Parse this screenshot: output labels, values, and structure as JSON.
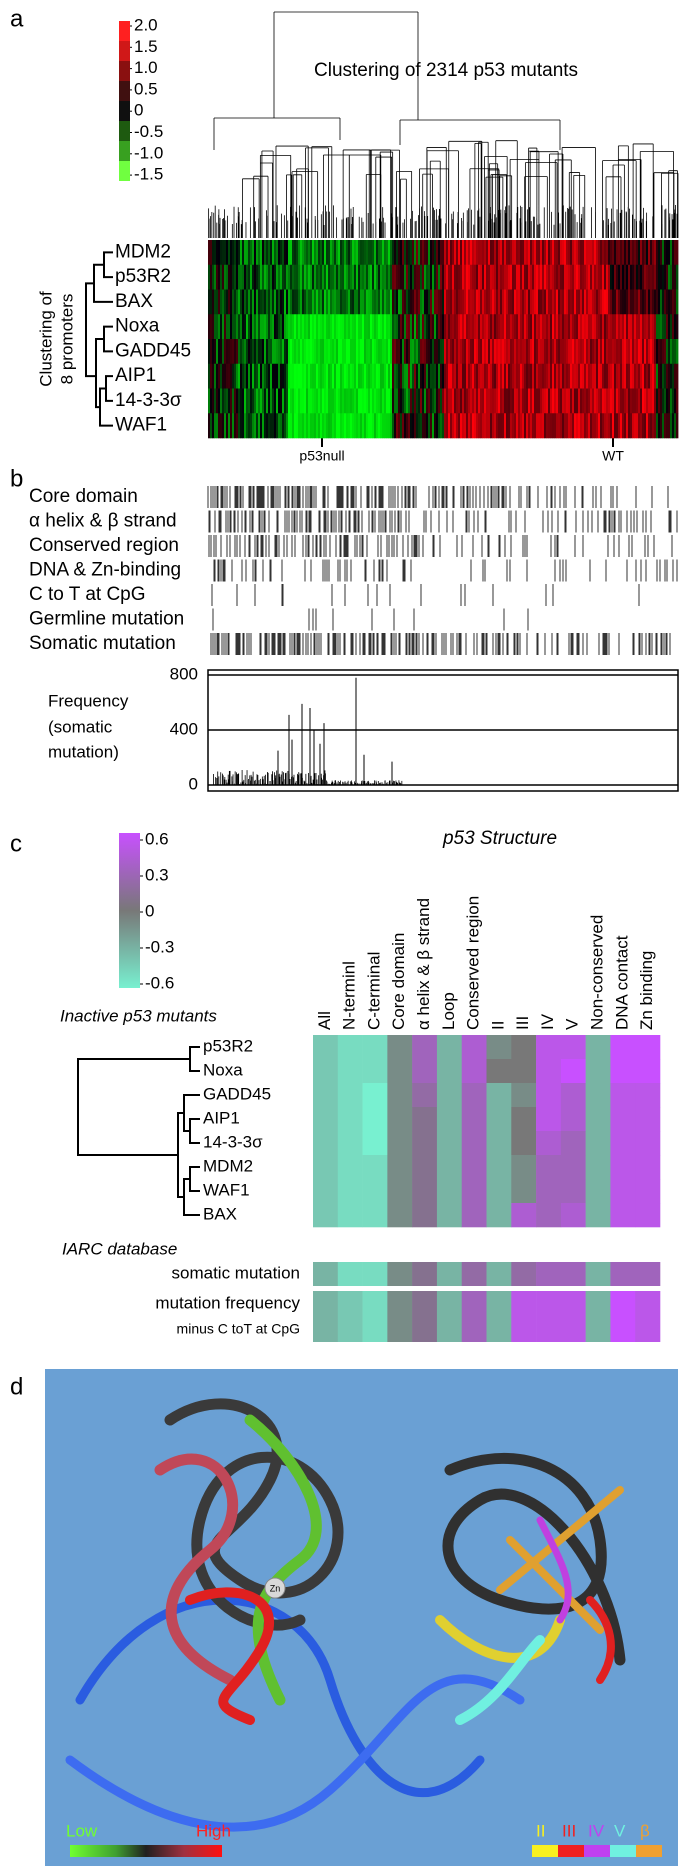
{
  "panel_a": {
    "label": "a",
    "title": "Clustering of 2314 p53 mutants",
    "scale": [
      {
        "value": 2.0,
        "label": "2.0"
      },
      1.5,
      {
        "value": 1.0,
        "label": "1.0"
      },
      0.5,
      0,
      -0.5,
      {
        "value": -1.0,
        "label": "-1.0"
      },
      -1.5
    ],
    "row_axis_label": [
      "Clustering of",
      "8 promoters"
    ],
    "rows": [
      "MDM2",
      "p53R2",
      "BAX",
      "Noxa",
      "GADD45",
      "AIP1",
      "14-3-3σ",
      "WAF1"
    ],
    "markers": [
      "p53null",
      "WT"
    ]
  },
  "panel_b": {
    "label": "b",
    "tracks": [
      "Core domain",
      "α helix & β strand",
      "Conserved region",
      "DNA & Zn-binding",
      "C to T at CpG",
      "Germline mutation",
      "Somatic mutation"
    ],
    "frequency": {
      "label": [
        "Frequency",
        "(somatic",
        "mutation)"
      ],
      "ylim": [
        0,
        800
      ],
      "yticks": [
        0,
        400,
        800
      ],
      "peaks": [
        250,
        510,
        330,
        590,
        560,
        400,
        300,
        450,
        780,
        220,
        170
      ]
    }
  },
  "panel_c": {
    "label": "c",
    "scale": [
      0.6,
      0.3,
      0,
      -0.3,
      -0.6
    ],
    "title": "p53 Structure",
    "columns": [
      "All",
      "N-terminl",
      "C-terminal",
      "Core domain",
      "α helix & β strand",
      "Loop",
      "Conserved region",
      "II",
      "III",
      "IV",
      "V",
      "Non-conserved",
      "DNA contact",
      "Zn binding"
    ],
    "group_label": "Inactive p53 mutants",
    "rows": [
      "p53R2",
      "Noxa",
      "GADD45",
      "AIP1",
      "14-3-3σ",
      "MDM2",
      "WAF1",
      "BAX"
    ],
    "values": [
      [
        -0.4,
        -0.5,
        -0.5,
        -0.1,
        0.3,
        -0.3,
        0.4,
        -0.1,
        0.0,
        0.5,
        0.5,
        -0.3,
        0.6,
        0.6
      ],
      [
        -0.4,
        -0.5,
        -0.5,
        -0.1,
        0.3,
        -0.3,
        0.4,
        0.0,
        0.0,
        0.5,
        0.6,
        -0.3,
        0.6,
        0.6
      ],
      [
        -0.4,
        -0.5,
        -0.6,
        -0.1,
        0.2,
        -0.3,
        0.3,
        -0.3,
        -0.1,
        0.5,
        0.4,
        -0.3,
        0.5,
        0.5
      ],
      [
        -0.4,
        -0.5,
        -0.6,
        -0.1,
        0.1,
        -0.3,
        0.3,
        -0.3,
        0.0,
        0.5,
        0.4,
        -0.3,
        0.5,
        0.5
      ],
      [
        -0.4,
        -0.5,
        -0.6,
        -0.1,
        0.1,
        -0.3,
        0.3,
        -0.3,
        0.0,
        0.4,
        0.3,
        -0.3,
        0.5,
        0.5
      ],
      [
        -0.4,
        -0.5,
        -0.5,
        -0.1,
        0.1,
        -0.3,
        0.3,
        -0.3,
        -0.1,
        0.3,
        0.3,
        -0.3,
        0.5,
        0.5
      ],
      [
        -0.4,
        -0.5,
        -0.5,
        -0.1,
        0.1,
        -0.3,
        0.3,
        -0.3,
        -0.1,
        0.3,
        0.3,
        -0.3,
        0.5,
        0.5
      ],
      [
        -0.4,
        -0.5,
        -0.5,
        -0.1,
        0.1,
        -0.3,
        0.3,
        -0.3,
        0.4,
        0.3,
        0.4,
        -0.3,
        0.5,
        0.5
      ]
    ],
    "iarc_label": "IARC database",
    "iarc_rows": [
      {
        "label": "somatic mutation",
        "values": [
          -0.3,
          -0.5,
          -0.5,
          -0.1,
          0.1,
          -0.3,
          0.2,
          -0.3,
          0.2,
          0.3,
          0.3,
          -0.3,
          0.3,
          0.3
        ]
      },
      {
        "label": "mutation frequency",
        "sublabel": "minus C toT at CpG",
        "values": [
          -0.3,
          -0.4,
          -0.5,
          -0.1,
          0.1,
          -0.3,
          0.3,
          -0.3,
          0.5,
          0.5,
          0.5,
          -0.3,
          0.6,
          0.5
        ]
      }
    ]
  },
  "panel_d": {
    "label": "d",
    "zn": "Zn",
    "legend_left": [
      "Low",
      "High"
    ],
    "legend_right": [
      "II",
      "III",
      "IV",
      "V",
      "β"
    ]
  }
}
